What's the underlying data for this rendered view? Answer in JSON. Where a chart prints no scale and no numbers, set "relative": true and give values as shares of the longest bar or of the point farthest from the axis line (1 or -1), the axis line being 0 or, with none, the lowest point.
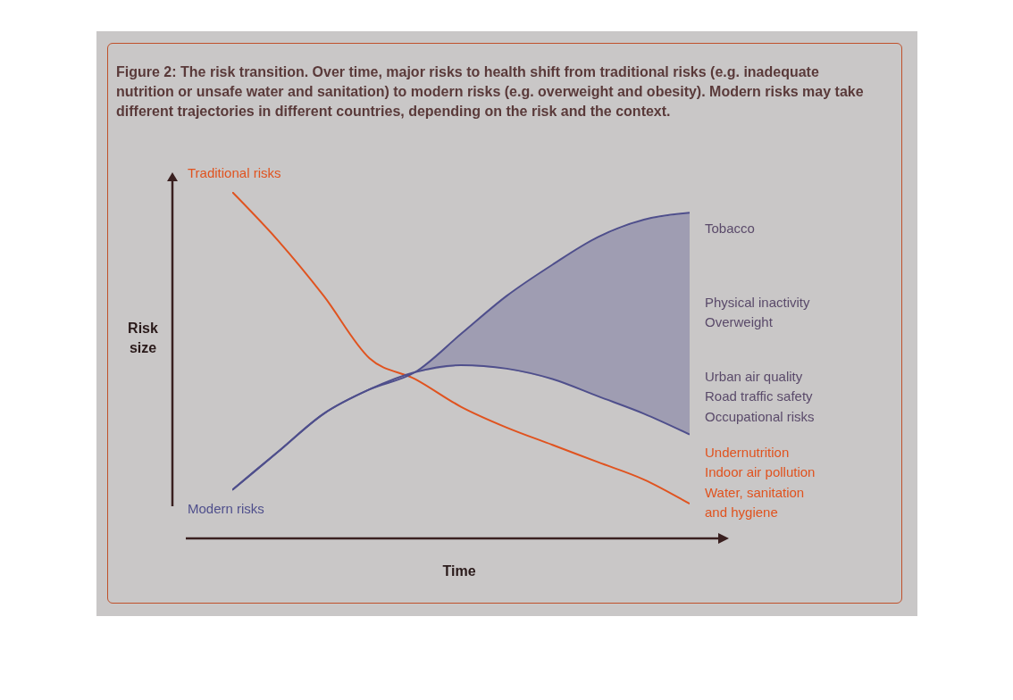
{
  "chart_data": {
    "type": "line",
    "relative": true,
    "title": "Figure 2: The risk transition. Over time, major risks to health shift from traditional risks (e.g. inadequate nutrition or unsafe water and sanitation) to modern risks (e.g. overweight and obesity). Modern risks may take different trajectories in different countries, depending on the risk and the context.",
    "xlabel": "Time",
    "ylabel": "Risk size",
    "categories": [
      null,
      null,
      null,
      null,
      null,
      null,
      null,
      null,
      null,
      null,
      null
    ],
    "legend": false,
    "marker": "none",
    "line_style": "solid",
    "grid": false,
    "series": [
      {
        "name": "Traditional risks",
        "color": "#e0531f",
        "values": [
          1.0,
          0.86,
          0.7,
          0.52,
          0.46,
          0.38,
          0.32,
          0.27,
          0.22,
          0.17,
          0.1
        ]
      },
      {
        "name": "Modern risks",
        "color": "#4f4f8c",
        "values": [
          0.14,
          0.25,
          0.36,
          0.43,
          0.48,
          0.59,
          0.7,
          0.79,
          0.87,
          0.92,
          0.94
        ],
        "lower": [
          null,
          null,
          null,
          null,
          0.48,
          0.5,
          0.49,
          0.46,
          0.41,
          0.36,
          0.3
        ],
        "upper": [
          null,
          null,
          null,
          null,
          0.48,
          0.59,
          0.7,
          0.79,
          0.87,
          0.92,
          0.94
        ]
      },
      {
        "color": "#4f4f8c",
        "values": [
          0.14,
          0.25,
          0.36,
          0.43,
          0.48,
          0.5,
          0.49,
          0.46,
          0.41,
          0.36,
          0.3
        ]
      }
    ],
    "annotations": [
      "Tobacco",
      "Physical inactivity",
      "Overweight",
      "Urban air quality",
      "Road traffic safety",
      "Occupational risks",
      "Undernutrition",
      "Indoor air pollution",
      "Water, sanitation and hygiene"
    ]
  }
}
